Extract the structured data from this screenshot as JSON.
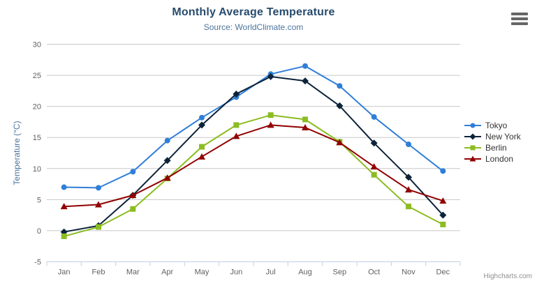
{
  "chart_data": {
    "type": "line",
    "title": "Monthly Average Temperature",
    "subtitle": "Source: WorldClimate.com",
    "categories": [
      "Jan",
      "Feb",
      "Mar",
      "Apr",
      "May",
      "Jun",
      "Jul",
      "Aug",
      "Sep",
      "Oct",
      "Nov",
      "Dec"
    ],
    "xlabel": "",
    "ylabel": "Temperature (°C)",
    "ylim": [
      -5,
      30
    ],
    "ytick_step": 5,
    "grid": true,
    "legend_position": "right",
    "series": [
      {
        "name": "Tokyo",
        "marker": "circle",
        "color": "#2f7ed8",
        "values": [
          7.0,
          6.9,
          9.5,
          14.5,
          18.2,
          21.5,
          25.2,
          26.5,
          23.3,
          18.3,
          13.9,
          9.6
        ]
      },
      {
        "name": "New York",
        "marker": "diamond",
        "color": "#0d233a",
        "values": [
          -0.2,
          0.8,
          5.7,
          11.3,
          17.0,
          22.0,
          24.8,
          24.1,
          20.1,
          14.1,
          8.6,
          2.5
        ]
      },
      {
        "name": "Berlin",
        "marker": "square",
        "color": "#8bbc21",
        "values": [
          -0.9,
          0.6,
          3.5,
          8.4,
          13.5,
          17.0,
          18.6,
          17.9,
          14.3,
          9.0,
          3.9,
          1.0
        ]
      },
      {
        "name": "London",
        "marker": "triangle",
        "color": "#910000",
        "values": [
          3.9,
          4.2,
          5.7,
          8.5,
          11.9,
          15.2,
          17.0,
          16.6,
          14.2,
          10.3,
          6.6,
          4.8
        ]
      }
    ]
  },
  "credit": "Highcharts.com",
  "theme": {
    "title_color": "#274b6d",
    "subtitle_color": "#4d759e",
    "axis_title_color": "#4d759e",
    "axis_label_color": "#606060",
    "grid_color": "#c8c8c8",
    "axis_line_color": "#c0d0e0",
    "legend_text_color": "#333333",
    "credit_color": "#909090",
    "menu_icon_color": "#666666"
  }
}
